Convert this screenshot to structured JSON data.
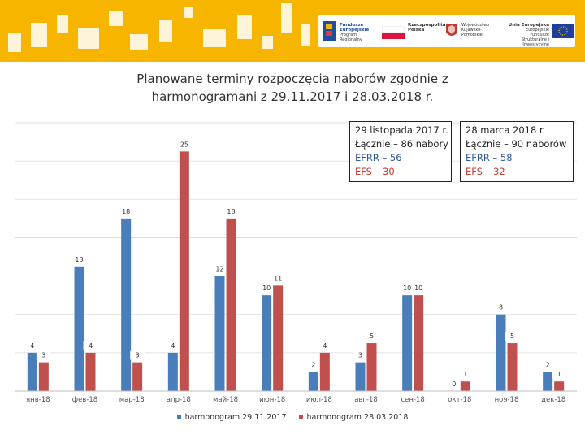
{
  "header": {
    "logos": [
      {
        "name": "Fundusze Europejskie",
        "sub": "Program Regionalny"
      },
      {
        "name": "Rzeczpospolita Polska",
        "sub": ""
      },
      {
        "name": "Województwo Kujawsko-Pomorskie",
        "sub": ""
      },
      {
        "name": "Unia Europejska",
        "sub": "Europejskie Fundusze Strukturalne i Inwestycyjne"
      }
    ]
  },
  "info_boxes": [
    {
      "line1": "29 listopada 2017 r.",
      "line2": "Łącznie – 86 nabory",
      "line3": "EFRR – 56",
      "line4": "EFS – 30"
    },
    {
      "line1": "28 marca 2018 r.",
      "line2": "Łącznie – 90 naborów",
      "line3": "EFRR – 58",
      "line4": "EFS – 32"
    }
  ],
  "colors": {
    "series1": "#4a7ebb",
    "series2": "#c0504d",
    "banner": "#f7b500"
  },
  "chart_data": {
    "type": "bar",
    "title": "Planowane terminy rozpoczęcia naborów zgodnie z harmonogramani z 29.11.2017 i 28.03.2018 r.",
    "title_line1": "Planowane terminy rozpoczęcia naborów zgodnie z",
    "title_line2": "harmonogramani z 29.11.2017 i 28.03.2018 r.",
    "categories": [
      "янв-18",
      "фев-18",
      "мар-18",
      "апр-18",
      "май-18",
      "июн-18",
      "июл-18",
      "авг-18",
      "сен-18",
      "окт-18",
      "ноя-18",
      "дек-18"
    ],
    "series": [
      {
        "name": "harmonogram 29.11.2017",
        "values": [
          4,
          13,
          18,
          4,
          12,
          10,
          2,
          3,
          10,
          0,
          8,
          2
        ]
      },
      {
        "name": "harmonogram 28.03.2018",
        "values": [
          3,
          4,
          3,
          25,
          18,
          11,
          4,
          5,
          10,
          1,
          5,
          1
        ]
      }
    ],
    "ylim": [
      0,
      28
    ],
    "grid": true,
    "legend_position": "bottom",
    "xlabel": "",
    "ylabel": ""
  }
}
